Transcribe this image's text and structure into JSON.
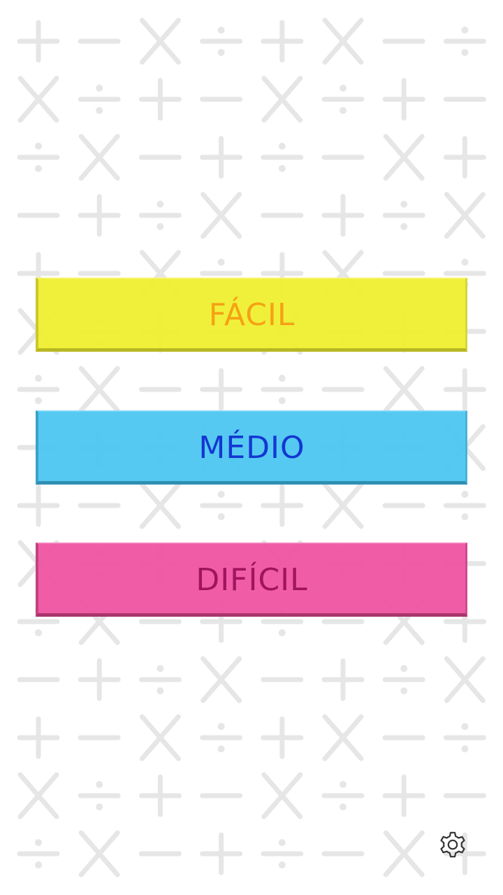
{
  "menu": {
    "levels": [
      {
        "id": "easy",
        "label": "FÁCIL",
        "color": "#F0F055",
        "text_color": "#F5A214"
      },
      {
        "id": "medium",
        "label": "MÉDIO",
        "color": "#56C8F0",
        "text_color": "#1436D2"
      },
      {
        "id": "hard",
        "label": "DIFÍCIL",
        "color": "#F059A5",
        "text_color": "#A0145F"
      }
    ]
  },
  "settings": {
    "icon": "gear-icon"
  },
  "background": {
    "pattern_symbols": [
      "+",
      "−",
      "×",
      "÷"
    ],
    "symbol_color": "#E6E6E6"
  }
}
